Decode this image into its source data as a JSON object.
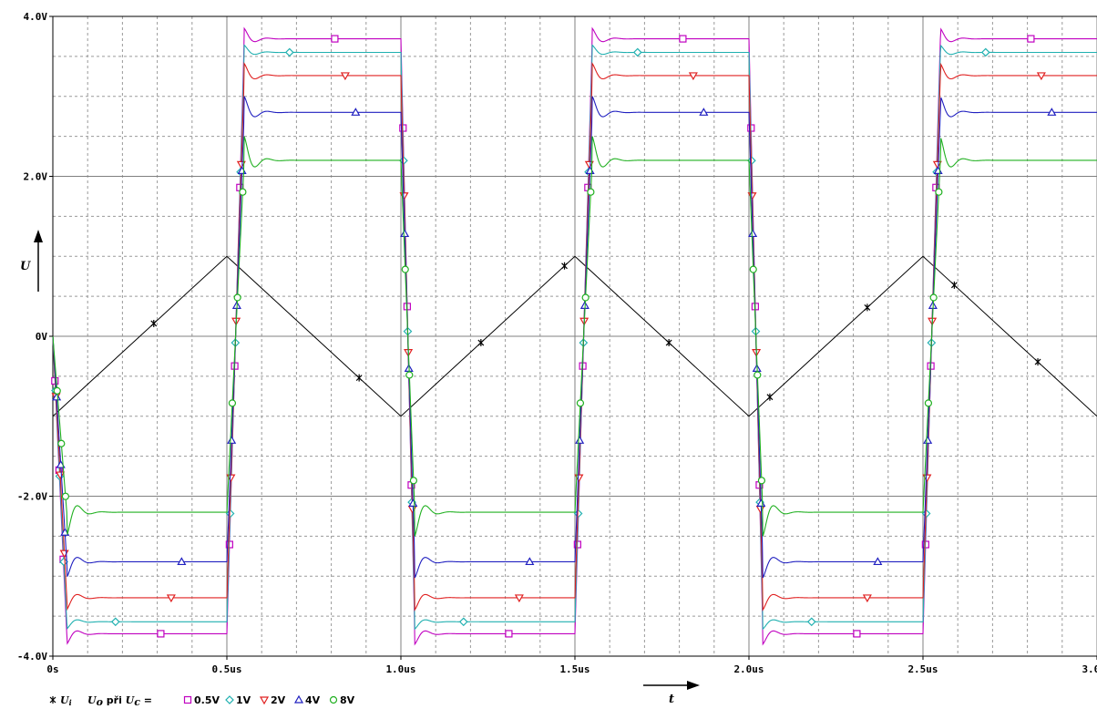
{
  "chart_data": {
    "type": "line",
    "xlabel": "t",
    "ylabel": "U",
    "xlim": [
      0,
      3.0
    ],
    "ylim": [
      -4.0,
      4.0
    ],
    "grid": true,
    "x_ticks": [
      "0s",
      "0.5us",
      "1.0us",
      "1.5us",
      "2.0us",
      "2.5us",
      "3.0us"
    ],
    "x_tick_values": [
      0,
      0.5,
      1.0,
      1.5,
      2.0,
      2.5,
      3.0
    ],
    "y_ticks": [
      "4.0V",
      "2.0V",
      "0V",
      "-2.0V",
      "-4.0V"
    ],
    "y_tick_values": [
      4,
      2,
      0,
      -2,
      -4
    ],
    "legend": {
      "placement": "bottom-left",
      "input_label": "U",
      "input_sub": "i",
      "output_label": "U",
      "output_sub": "o",
      "mid_text": " při ",
      "control_label": "U",
      "control_sub": "c",
      "equals": " ="
    },
    "input_series": {
      "name": "Ui",
      "marker": "star",
      "color": "#000000",
      "x": [
        0,
        0.5,
        1.0,
        1.5,
        2.0,
        2.5,
        3.0
      ],
      "y": [
        -1,
        1,
        -1,
        1,
        -1,
        1,
        -1
      ]
    },
    "series": [
      {
        "name": "0.5V",
        "marker": "square",
        "color": "#c000c0",
        "low": -3.72,
        "high": 3.72,
        "peak": 0.13,
        "sample_x": 0.81
      },
      {
        "name": "1V",
        "marker": "diamond",
        "color": "#20b0b0",
        "low": -3.57,
        "high": 3.55,
        "peak": 0.09,
        "sample_x": 0.68
      },
      {
        "name": "2V",
        "marker": "triangle-down",
        "color": "#e02020",
        "low": -3.27,
        "high": 3.26,
        "peak": 0.15,
        "sample_x": 0.34
      },
      {
        "name": "4V",
        "marker": "triangle-up",
        "color": "#2020c0",
        "low": -2.82,
        "high": 2.8,
        "peak": 0.2,
        "sample_x": 0.87
      },
      {
        "name": "8V",
        "marker": "circle",
        "color": "#20b020",
        "low": -2.2,
        "high": 2.2,
        "peak": 0.3,
        "sample_x": 0.6
      }
    ],
    "switching": {
      "rise_at": [
        0.5,
        1.5,
        2.5
      ],
      "fall_at": [
        1.0,
        2.0
      ],
      "start_value": 0,
      "rise_duration": 0.05,
      "fall_duration": 0.04
    }
  }
}
